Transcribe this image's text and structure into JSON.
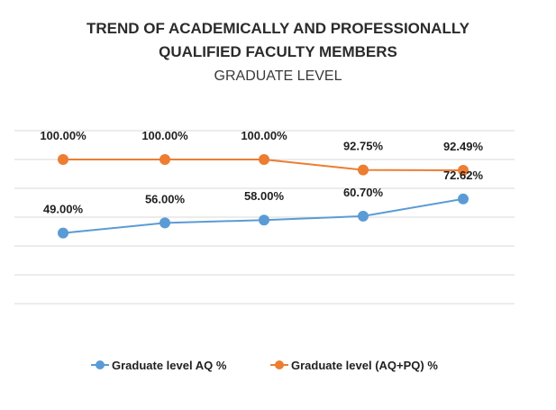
{
  "chart_data": {
    "type": "line",
    "title_line1": "TREND OF ACADEMICALLY AND PROFESSIONALLY",
    "title_line2": "QUALIFIED FACULTY MEMBERS",
    "subtitle": "GRADUATE LEVEL",
    "categories": [
      "",
      "",
      "",
      "",
      ""
    ],
    "ylim": [
      0,
      120
    ],
    "grid": true,
    "legend_position": "bottom",
    "series": [
      {
        "name": "Graduate level AQ %",
        "color": "#5b9bd5",
        "values": [
          49.0,
          56.0,
          58.0,
          60.7,
          72.62
        ],
        "labels": [
          "49.00%",
          "56.00%",
          "58.00%",
          "60.70%",
          "72.62%"
        ]
      },
      {
        "name": "Graduate level (AQ+PQ) %",
        "color": "#ed7d31",
        "values": [
          100.0,
          100.0,
          100.0,
          92.75,
          92.49
        ],
        "labels": [
          "100.00%",
          "100.00%",
          "100.00%",
          "92.75%",
          "92.49%"
        ]
      }
    ]
  }
}
